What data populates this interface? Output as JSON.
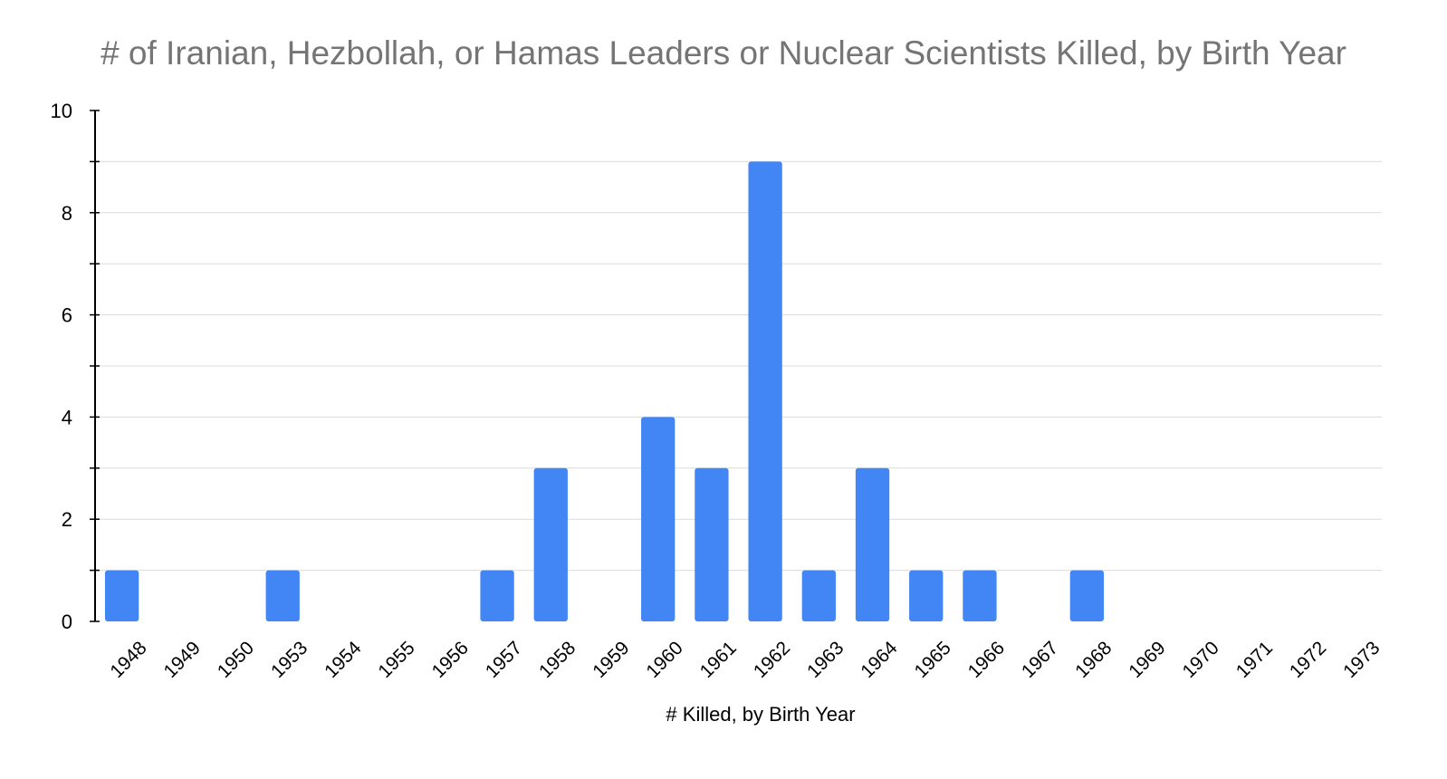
{
  "chart_data": {
    "type": "bar",
    "title": "# of Iranian, Hezbollah, or Hamas Leaders or Nuclear Scientists Killed, by Birth Year",
    "xlabel": "# Killed, by Birth Year",
    "ylabel": "",
    "categories": [
      "1948",
      "1949",
      "1950",
      "1953",
      "1954",
      "1955",
      "1956",
      "1957",
      "1958",
      "1959",
      "1960",
      "1961",
      "1962",
      "1963",
      "1964",
      "1965",
      "1966",
      "1967",
      "1968",
      "1969",
      "1970",
      "1971",
      "1972",
      "1973"
    ],
    "values": [
      1,
      0,
      0,
      1,
      0,
      0,
      0,
      1,
      3,
      0,
      4,
      3,
      9,
      1,
      3,
      1,
      1,
      0,
      1,
      0,
      0,
      0,
      0,
      0
    ],
    "ylim": [
      0,
      10
    ],
    "y_ticks": [
      "0",
      "2",
      "4",
      "6",
      "8",
      "10"
    ],
    "grid": true,
    "legend": "none",
    "bar_color": "#4285f4",
    "title_color": "#757575"
  }
}
